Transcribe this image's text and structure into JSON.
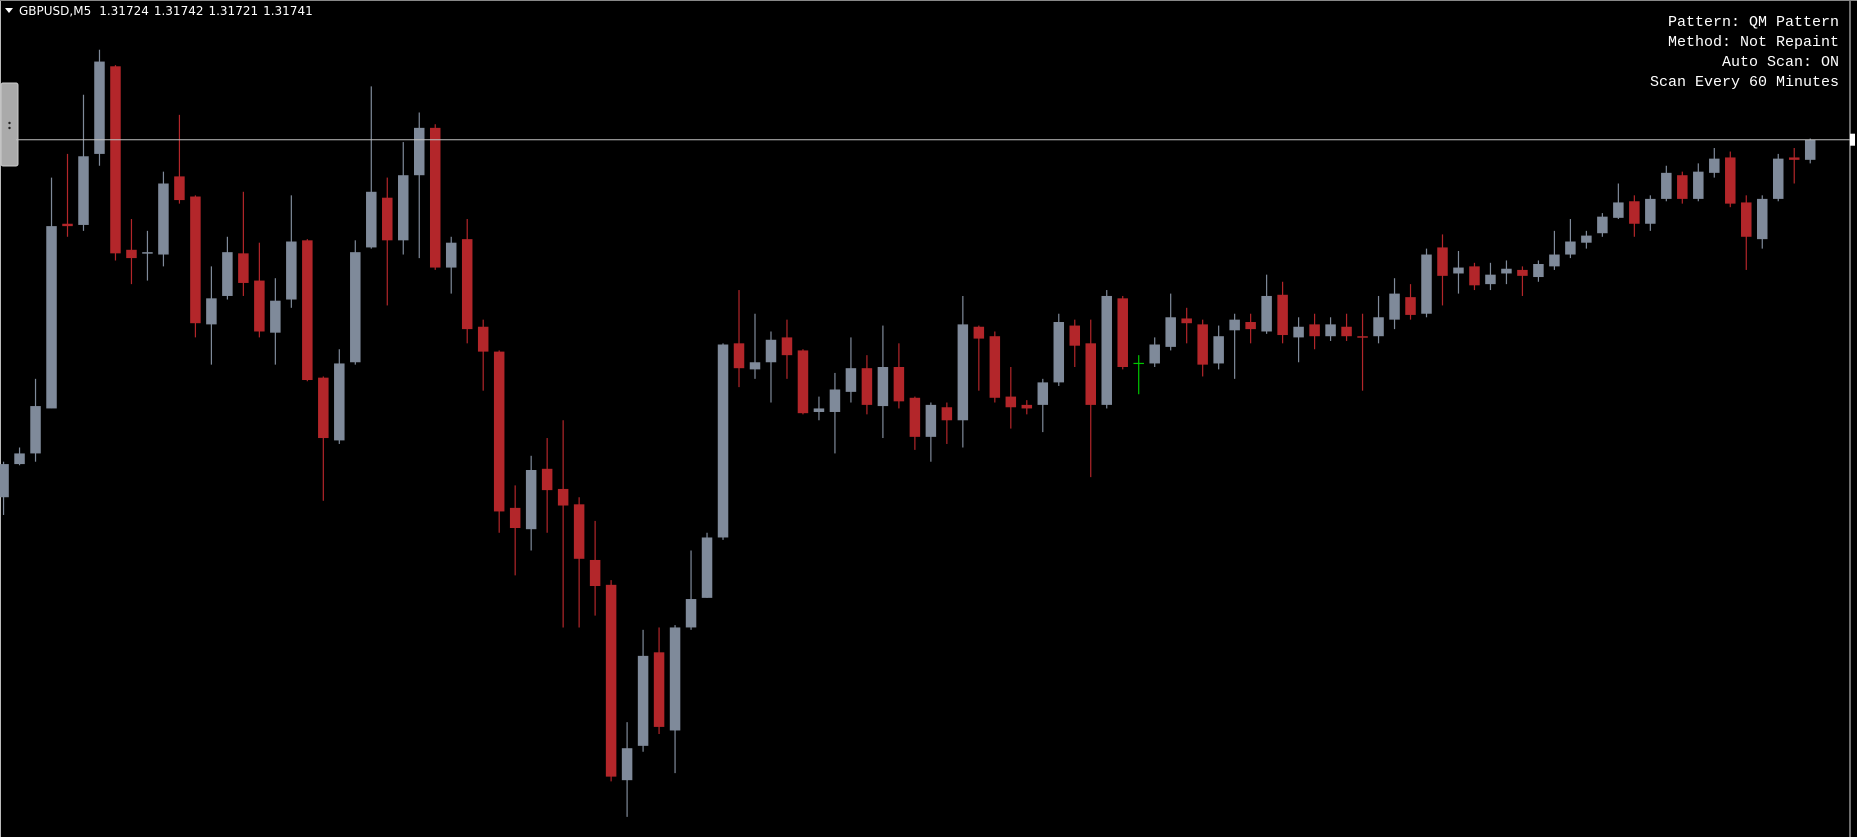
{
  "chart_data": {
    "type": "candlestick",
    "symbol": "GBPUSD,M5",
    "info_lines": [
      "Pattern: QM Pattern",
      "Method: Not Repaint",
      "Auto Scan: ON",
      "Scan Every 60 Minutes"
    ],
    "bull_color": "#7f8a9a",
    "bear_color": "#b3262a",
    "doji_color": "#00c800",
    "bid_line_color": "#c0c0c0",
    "ylim": [
      1.31152,
      1.31859
    ],
    "open": [
      1.31439,
      1.31467,
      1.31476,
      1.31514,
      1.3167,
      1.31669,
      1.31729,
      1.31803,
      1.31648,
      1.31645,
      1.31644,
      1.3171,
      1.31693,
      1.31585,
      1.31609,
      1.31645,
      1.31622,
      1.31578,
      1.31606,
      1.31656,
      1.3154,
      1.31487,
      1.31553,
      1.3165,
      1.31692,
      1.31656,
      1.31711,
      1.31751,
      1.31633,
      1.31657,
      1.31583,
      1.31562,
      1.3143,
      1.31412,
      1.31463,
      1.31446,
      1.31433,
      1.31386,
      1.31365,
      1.312,
      1.31229,
      1.31308,
      1.31242,
      1.31329,
      1.31354,
      1.31405,
      1.31569,
      1.31547,
      1.31553,
      1.31574,
      1.31563,
      1.31511,
      1.31511,
      1.31528,
      1.31548,
      1.31516,
      1.31549,
      1.31523,
      1.3149,
      1.31515,
      1.31504,
      1.31583,
      1.31575,
      1.31524,
      1.31517,
      1.31517,
      1.31536,
      1.31584,
      1.31569,
      1.31517,
      1.31607,
      1.31552,
      1.31552,
      1.31566,
      1.3159,
      1.31585,
      1.31552,
      1.3158,
      1.31587,
      1.31579,
      1.3161,
      1.31574,
      1.31585,
      1.31575,
      1.31583,
      1.31575,
      1.31575,
      1.31589,
      1.31608,
      1.31594,
      1.3165,
      1.31628,
      1.31634,
      1.31619,
      1.31628,
      1.31631,
      1.31625,
      1.31634,
      1.31644,
      1.31654,
      1.31662,
      1.31675,
      1.31689,
      1.3167,
      1.31691,
      1.31711,
      1.31691,
      1.31713,
      1.31726,
      1.31688,
      1.31657,
      1.31691,
      1.31726,
      1.31724
    ],
    "high": [
      1.31469,
      1.31481,
      1.31539,
      1.31709,
      1.31729,
      1.31779,
      1.31817,
      1.31804,
      1.31674,
      1.31664,
      1.31714,
      1.31762,
      1.31694,
      1.31634,
      1.31659,
      1.31697,
      1.31654,
      1.31624,
      1.31694,
      1.31657,
      1.31541,
      1.31564,
      1.31656,
      1.31786,
      1.31709,
      1.31739,
      1.31764,
      1.31754,
      1.31659,
      1.31674,
      1.31589,
      1.31563,
      1.31449,
      1.31474,
      1.31489,
      1.31504,
      1.31439,
      1.31419,
      1.31369,
      1.31249,
      1.31327,
      1.31329,
      1.31331,
      1.31394,
      1.31409,
      1.31569,
      1.31614,
      1.31594,
      1.31579,
      1.31589,
      1.31564,
      1.31524,
      1.31544,
      1.31574,
      1.31559,
      1.31584,
      1.31569,
      1.31524,
      1.31519,
      1.31519,
      1.31609,
      1.31584,
      1.31579,
      1.31549,
      1.31521,
      1.31539,
      1.31594,
      1.31589,
      1.31589,
      1.31614,
      1.31609,
      1.31559,
      1.31574,
      1.31611,
      1.31599,
      1.31589,
      1.31584,
      1.31594,
      1.31594,
      1.31627,
      1.31621,
      1.31591,
      1.31594,
      1.31591,
      1.31594,
      1.31594,
      1.31609,
      1.31624,
      1.31619,
      1.31649,
      1.31661,
      1.31647,
      1.31637,
      1.31637,
      1.31639,
      1.31634,
      1.31639,
      1.31664,
      1.31674,
      1.31664,
      1.31679,
      1.31704,
      1.31694,
      1.31694,
      1.31719,
      1.31714,
      1.31721,
      1.31734,
      1.31731,
      1.31694,
      1.31694,
      1.31729,
      1.31734,
      1.31742
    ],
    "low": [
      1.31424,
      1.31466,
      1.31469,
      1.31514,
      1.31659,
      1.31664,
      1.31719,
      1.31639,
      1.31619,
      1.31622,
      1.31634,
      1.31687,
      1.31574,
      1.31551,
      1.31606,
      1.31609,
      1.31574,
      1.31551,
      1.31599,
      1.31537,
      1.31436,
      1.31484,
      1.31551,
      1.31649,
      1.31601,
      1.31644,
      1.31641,
      1.31631,
      1.31611,
      1.31569,
      1.31529,
      1.31409,
      1.31373,
      1.31394,
      1.31409,
      1.31329,
      1.31329,
      1.31339,
      1.31199,
      1.31169,
      1.31224,
      1.31239,
      1.31206,
      1.31327,
      1.31354,
      1.31403,
      1.31532,
      1.31539,
      1.31519,
      1.31539,
      1.31509,
      1.31504,
      1.31476,
      1.31519,
      1.31509,
      1.31489,
      1.31514,
      1.31479,
      1.31469,
      1.31484,
      1.31481,
      1.31529,
      1.31519,
      1.31497,
      1.31509,
      1.31494,
      1.31533,
      1.31549,
      1.31456,
      1.31514,
      1.31547,
      1.31526,
      1.31549,
      1.31563,
      1.31569,
      1.31541,
      1.31547,
      1.31539,
      1.31569,
      1.31577,
      1.31569,
      1.31553,
      1.31564,
      1.31571,
      1.31571,
      1.31529,
      1.31569,
      1.31581,
      1.31589,
      1.31591,
      1.31601,
      1.31611,
      1.31614,
      1.31614,
      1.31619,
      1.31609,
      1.31621,
      1.31631,
      1.31641,
      1.31649,
      1.31659,
      1.31674,
      1.31659,
      1.31664,
      1.31689,
      1.31687,
      1.31689,
      1.31709,
      1.31684,
      1.31631,
      1.31649,
      1.31689,
      1.31704,
      1.31721
    ],
    "close": [
      1.31467,
      1.31476,
      1.31516,
      1.31668,
      1.31668,
      1.31727,
      1.31807,
      1.31645,
      1.31641,
      1.31646,
      1.31704,
      1.3169,
      1.31586,
      1.31607,
      1.31646,
      1.3162,
      1.31579,
      1.31605,
      1.31655,
      1.31538,
      1.31489,
      1.31552,
      1.31646,
      1.31697,
      1.31656,
      1.31711,
      1.31751,
      1.31633,
      1.31654,
      1.31581,
      1.31562,
      1.31427,
      1.31413,
      1.31462,
      1.31445,
      1.31432,
      1.31387,
      1.31364,
      1.31203,
      1.31227,
      1.31305,
      1.31245,
      1.31329,
      1.31353,
      1.31405,
      1.31568,
      1.31548,
      1.31553,
      1.31572,
      1.31559,
      1.3151,
      1.31514,
      1.3153,
      1.31548,
      1.31517,
      1.31549,
      1.3152,
      1.3149,
      1.31517,
      1.31504,
      1.31585,
      1.31573,
      1.31523,
      1.31515,
      1.31514,
      1.31536,
      1.31587,
      1.31567,
      1.31517,
      1.31609,
      1.31549,
      1.31552,
      1.31568,
      1.31591,
      1.31586,
      1.31551,
      1.31575,
      1.31589,
      1.31581,
      1.31609,
      1.31576,
      1.31583,
      1.31575,
      1.31585,
      1.31575,
      1.31574,
      1.31591,
      1.31611,
      1.31593,
      1.31644,
      1.31626,
      1.31633,
      1.31618,
      1.31627,
      1.31632,
      1.31626,
      1.31636,
      1.31644,
      1.31655,
      1.3166,
      1.31676,
      1.31688,
      1.3167,
      1.31691,
      1.31713,
      1.31691,
      1.31714,
      1.31725,
      1.31687,
      1.31659,
      1.31691,
      1.31725,
      1.31724,
      1.31741
    ]
  }
}
